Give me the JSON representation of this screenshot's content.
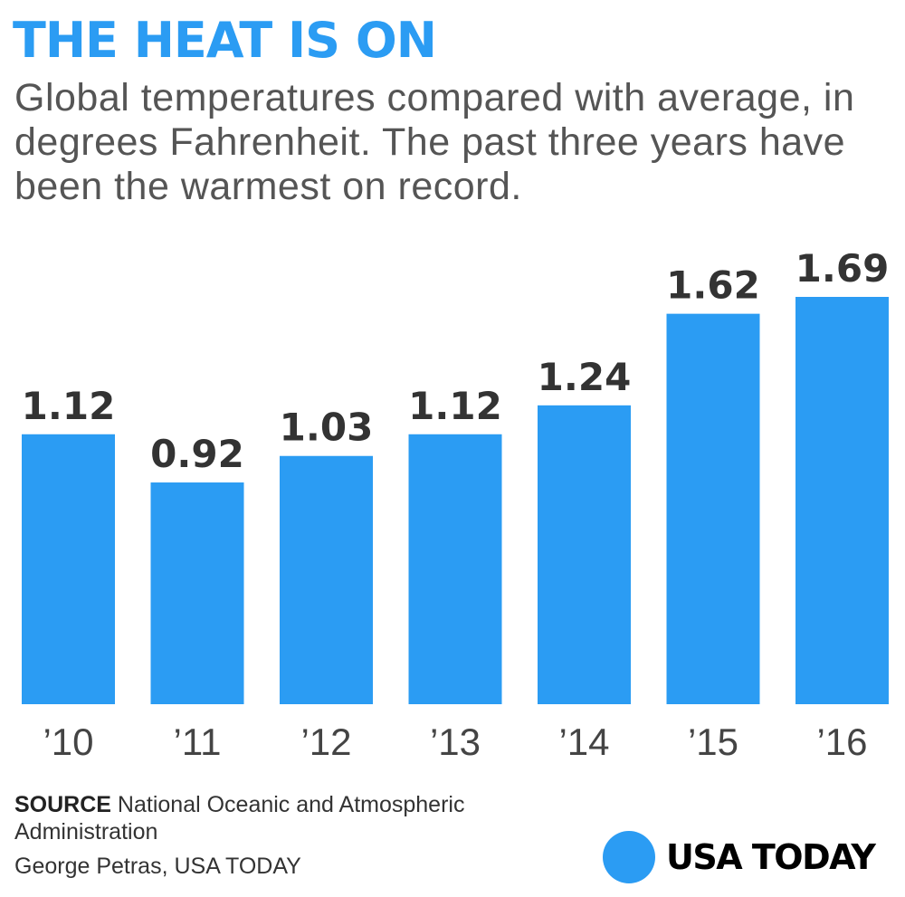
{
  "header": {
    "title": "THE HEAT IS ON",
    "subtitle": "Global temperatures compared with average, in degrees Fahrenheit. The past three years have been the warmest on record."
  },
  "chart_data": {
    "type": "bar",
    "title": "THE HEAT IS ON",
    "subtitle": "Global temperatures compared with average, in degrees Fahrenheit. The past three years have been the warmest on record.",
    "categories": [
      "’10",
      "’11",
      "’12",
      "’13",
      "’14",
      "’15",
      "’16"
    ],
    "values": [
      1.12,
      0.92,
      1.03,
      1.12,
      1.24,
      1.62,
      1.69
    ],
    "value_labels": [
      "1.12",
      "0.92",
      "1.03",
      "1.12",
      "1.24",
      "1.62",
      "1.69"
    ],
    "xlabel": "",
    "ylabel": "",
    "ylim": [
      0,
      1.69
    ],
    "grid": false,
    "legend": "none",
    "data_labels": true
  },
  "footer": {
    "source_label": "SOURCE",
    "source_text": "National Oceanic and Atmospheric Administration",
    "credit": "George Petras, USA TODAY",
    "logo_text": "USA TODAY"
  },
  "colors": {
    "title": "#2b9cf3",
    "bar": "#2b9cf3",
    "value_label": "#333333",
    "tick_label": "#444444",
    "logo_dot": "#2b9cf3",
    "logo_text": "#000000"
  },
  "icons": {
    "logo_mark": "blue-circle-logo-icon"
  }
}
